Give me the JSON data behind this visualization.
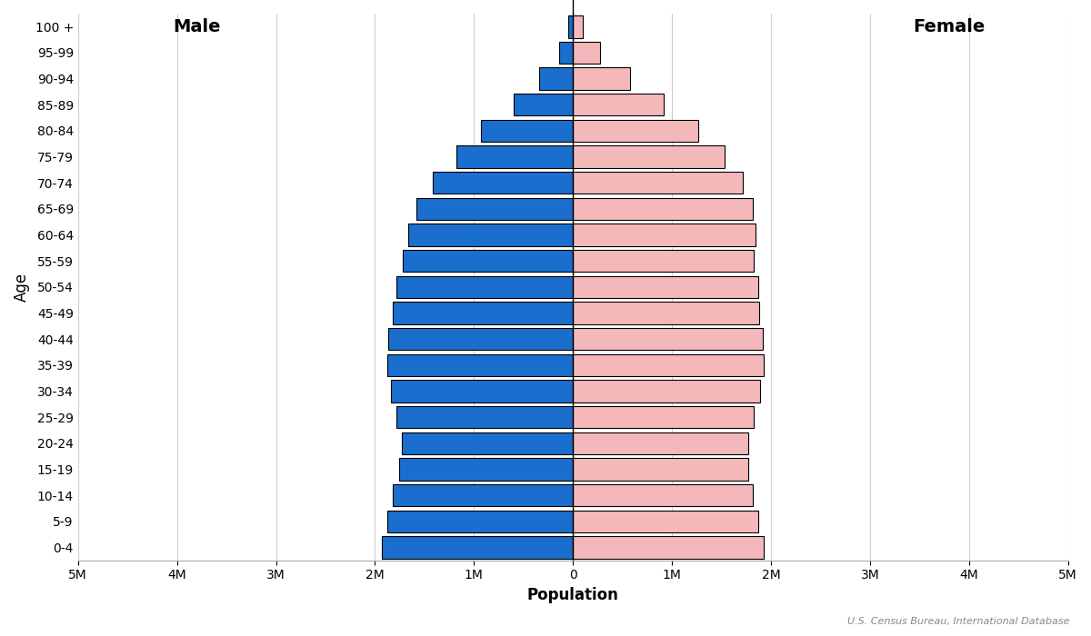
{
  "age_groups": [
    "0-4",
    "5-9",
    "10-14",
    "15-19",
    "20-24",
    "25-29",
    "30-34",
    "35-39",
    "40-44",
    "45-49",
    "50-54",
    "55-59",
    "60-64",
    "65-69",
    "70-74",
    "75-79",
    "80-84",
    "85-89",
    "90-94",
    "95-99",
    "100 +"
  ],
  "male_pop": [
    1930000,
    1880000,
    1820000,
    1760000,
    1730000,
    1780000,
    1840000,
    1880000,
    1870000,
    1820000,
    1780000,
    1720000,
    1660000,
    1580000,
    1420000,
    1180000,
    930000,
    600000,
    340000,
    140000,
    50000
  ],
  "female_pop": [
    1930000,
    1870000,
    1820000,
    1770000,
    1770000,
    1830000,
    1890000,
    1930000,
    1920000,
    1880000,
    1870000,
    1830000,
    1840000,
    1820000,
    1720000,
    1530000,
    1270000,
    920000,
    580000,
    270000,
    100000
  ],
  "male_color": "#1a6fce",
  "female_color": "#f4b8bb",
  "edge_color": "#000000",
  "background_color": "#ffffff",
  "xlabel": "Population",
  "ylabel": "Age",
  "tick_positions": [
    -5000000,
    -4000000,
    -3000000,
    -2000000,
    -1000000,
    0,
    1000000,
    2000000,
    3000000,
    4000000,
    5000000
  ],
  "tick_labels": [
    "5M",
    "4M",
    "3M",
    "2M",
    "1M",
    "0",
    "1M",
    "2M",
    "3M",
    "4M",
    "5M"
  ],
  "grid_color": "#d0d0d0",
  "source_text": "U.S. Census Bureau, International Database",
  "male_label": "Male",
  "female_label": "Female"
}
